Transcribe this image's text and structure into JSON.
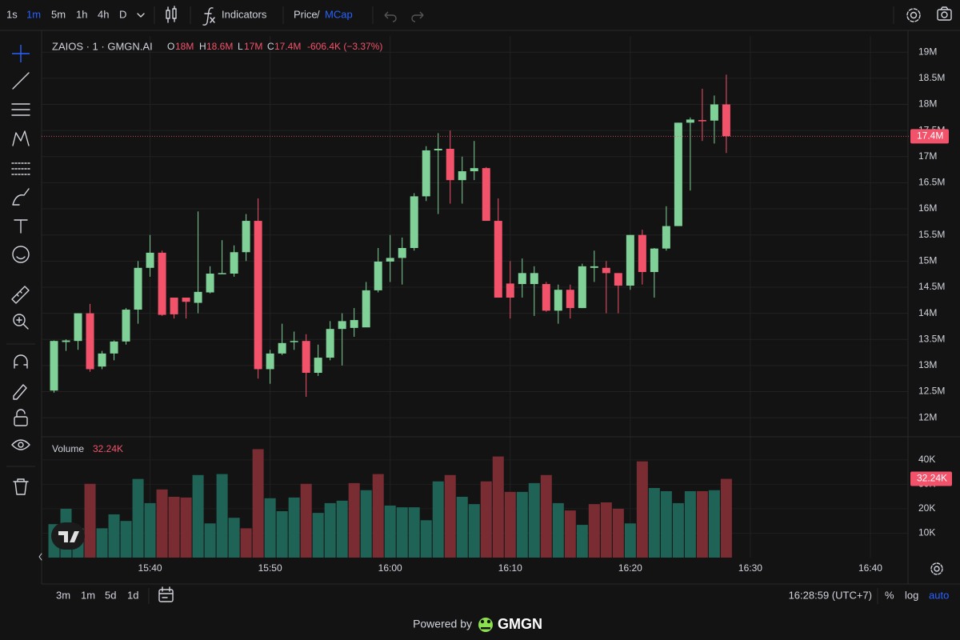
{
  "toolbar": {
    "intervals": [
      "1s",
      "1m",
      "5m",
      "1h",
      "4h",
      "D"
    ],
    "indicators": "Indicators",
    "price": "Price",
    "separator": "/",
    "mcap": "MCap"
  },
  "legend": {
    "symbol": "ZAIOS · 1 · GMGN.AI",
    "o_label": "O",
    "o": "18M",
    "h_label": "H",
    "h": "18.6M",
    "l_label": "L",
    "l": "17M",
    "c_label": "C",
    "c": "17.4M",
    "change": "-606.4K (−3.37%)"
  },
  "chart_data": [
    {
      "type": "candlestick",
      "up_color": "#7fd197",
      "down_color": "#f2536b",
      "x": [
        "15:32",
        "15:33",
        "15:34",
        "15:35",
        "15:36",
        "15:37",
        "15:38",
        "15:39",
        "15:40",
        "15:41",
        "15:42",
        "15:43",
        "15:44",
        "15:45",
        "15:46",
        "15:47",
        "15:48",
        "15:49",
        "15:50",
        "15:51",
        "15:52",
        "15:53",
        "15:54",
        "15:55",
        "15:56",
        "15:57",
        "15:58",
        "15:59",
        "16:00",
        "16:01",
        "16:02",
        "16:03",
        "16:04",
        "16:05",
        "16:06",
        "16:07",
        "16:08",
        "16:09",
        "16:10",
        "16:11",
        "16:12",
        "16:13",
        "16:14",
        "16:15",
        "16:16",
        "16:17",
        "16:18",
        "16:19",
        "16:20",
        "16:21",
        "16:22",
        "16:23",
        "16:24",
        "16:25",
        "16:26",
        "16:27",
        "16:28"
      ],
      "open": [
        12.52,
        13.45,
        13.47,
        14.0,
        12.98,
        13.23,
        13.46,
        14.07,
        14.87,
        15.16,
        14.3,
        14.3,
        14.2,
        14.4,
        14.76,
        14.76,
        15.17,
        15.77,
        12.93,
        13.23,
        13.45,
        13.47,
        12.86,
        13.15,
        13.7,
        13.72,
        13.73,
        14.44,
        14.99,
        15.06,
        15.25,
        16.24,
        17.12,
        17.15,
        16.55,
        16.72,
        16.78,
        15.77,
        14.57,
        14.56,
        14.56,
        14.56,
        14.05,
        14.45,
        14.1,
        14.87,
        14.87,
        14.77,
        14.53,
        15.5,
        14.79,
        15.24,
        15.67,
        17.65,
        17.7,
        17.69,
        18.0
      ],
      "high": [
        13.48,
        13.5,
        14.0,
        14.18,
        13.28,
        13.48,
        14.1,
        15.0,
        15.5,
        15.2,
        14.3,
        14.3,
        15.95,
        14.9,
        15.4,
        15.3,
        15.9,
        16.2,
        13.3,
        13.8,
        13.65,
        13.6,
        13.4,
        13.85,
        14.0,
        14.1,
        14.6,
        15.25,
        15.5,
        15.45,
        16.3,
        17.2,
        17.45,
        17.5,
        17.0,
        17.3,
        16.8,
        16.2,
        15.0,
        15.05,
        14.9,
        14.6,
        14.55,
        14.55,
        14.95,
        15.2,
        15.0,
        14.77,
        15.5,
        15.6,
        15.25,
        16.05,
        17.65,
        17.75,
        18.3,
        18.17,
        18.57
      ],
      "low": [
        12.48,
        13.28,
        13.3,
        12.88,
        12.93,
        13.1,
        13.4,
        13.8,
        14.7,
        13.95,
        13.9,
        13.9,
        14.0,
        14.38,
        14.76,
        14.7,
        15.0,
        12.75,
        12.65,
        13.2,
        13.3,
        12.4,
        12.8,
        13.1,
        13.0,
        13.55,
        13.75,
        14.4,
        14.6,
        14.55,
        15.2,
        16.15,
        15.9,
        16.1,
        16.1,
        16.55,
        15.77,
        14.3,
        13.9,
        14.3,
        13.95,
        14.03,
        13.8,
        13.9,
        14.1,
        14.6,
        14.0,
        14.0,
        14.45,
        14.55,
        14.3,
        15.2,
        15.67,
        16.35,
        17.3,
        17.25,
        17.07
      ],
      "close": [
        13.47,
        13.48,
        14.0,
        12.93,
        13.23,
        13.46,
        14.07,
        14.87,
        15.16,
        13.97,
        13.98,
        14.22,
        14.41,
        14.76,
        14.77,
        15.17,
        15.77,
        12.93,
        13.23,
        13.43,
        13.47,
        12.86,
        13.15,
        13.7,
        13.85,
        13.87,
        14.44,
        14.99,
        15.06,
        15.25,
        16.24,
        17.12,
        17.15,
        16.55,
        16.72,
        16.78,
        15.77,
        14.3,
        14.3,
        14.77,
        14.77,
        14.05,
        14.45,
        14.1,
        14.9,
        14.9,
        14.77,
        14.53,
        15.5,
        14.79,
        15.24,
        15.67,
        17.65,
        17.71,
        17.69,
        18.0,
        17.39
      ],
      "last_label": "17.4M",
      "xlim": [
        "15:31:10",
        "16:42:48"
      ],
      "ylim": [
        11.65,
        19.31
      ],
      "yticks": [
        {
          "value": 12,
          "label": "12M"
        },
        {
          "value": 12.5,
          "label": "12.5M"
        },
        {
          "value": 13,
          "label": "13M"
        },
        {
          "value": 13.5,
          "label": "13.5M"
        },
        {
          "value": 14,
          "label": "14M"
        },
        {
          "value": 14.5,
          "label": "14.5M"
        },
        {
          "value": 15,
          "label": "15M"
        },
        {
          "value": 15.5,
          "label": "15.5M"
        },
        {
          "value": 16,
          "label": "16M"
        },
        {
          "value": 16.5,
          "label": "16.5M"
        },
        {
          "value": 17,
          "label": "17M"
        },
        {
          "value": 17.5,
          "label": "17.5M"
        },
        {
          "value": 18,
          "label": "18M"
        },
        {
          "value": 18.5,
          "label": "18.5M"
        },
        {
          "value": 19,
          "label": "19M"
        }
      ],
      "grid": true
    },
    {
      "type": "bar",
      "title": "Volume",
      "legend_value": "32.24K",
      "x": [
        "15:32",
        "15:33",
        "15:34",
        "15:35",
        "15:36",
        "15:37",
        "15:38",
        "15:39",
        "15:40",
        "15:41",
        "15:42",
        "15:43",
        "15:44",
        "15:45",
        "15:46",
        "15:47",
        "15:48",
        "15:49",
        "15:50",
        "15:51",
        "15:52",
        "15:53",
        "15:54",
        "15:55",
        "15:56",
        "15:57",
        "15:58",
        "15:59",
        "16:00",
        "16:01",
        "16:02",
        "16:03",
        "16:04",
        "16:05",
        "16:06",
        "16:07",
        "16:08",
        "16:09",
        "16:10",
        "16:11",
        "16:12",
        "16:13",
        "16:14",
        "16:15",
        "16:16",
        "16:17",
        "16:18",
        "16:19",
        "16:20",
        "16:21",
        "16:22",
        "16:23",
        "16:24",
        "16:25",
        "16:26",
        "16:27",
        "16:28"
      ],
      "values": [
        13.7,
        20.0,
        12.0,
        30.2,
        12.0,
        17.7,
        15.0,
        32.2,
        22.3,
        27.9,
        24.9,
        24.6,
        33.8,
        14.0,
        34.2,
        16.3,
        12.0,
        44.4,
        24.3,
        19.0,
        24.6,
        30.2,
        18.3,
        22.3,
        23.3,
        30.5,
        27.6,
        34.2,
        21.3,
        20.6,
        20.6,
        15.3,
        31.2,
        33.8,
        24.9,
        21.9,
        31.2,
        41.4,
        26.9,
        26.9,
        30.5,
        33.8,
        22.3,
        19.3,
        13.4,
        21.9,
        22.6,
        20.0,
        14.0,
        39.4,
        28.5,
        27.2,
        22.3,
        27.2,
        27.2,
        27.6,
        32.24
      ],
      "colors": [
        "#1f6356",
        "#1f6356",
        "#1f6356",
        "#7a2c33",
        "#1f6356",
        "#1f6356",
        "#1f6356",
        "#1f6356",
        "#1f6356",
        "#7a2c33",
        "#7a2c33",
        "#7a2c33",
        "#1f6356",
        "#1f6356",
        "#1f6356",
        "#1f6356",
        "#7a2c33",
        "#7a2c33",
        "#1f6356",
        "#1f6356",
        "#1f6356",
        "#7a2c33",
        "#1f6356",
        "#1f6356",
        "#1f6356",
        "#7a2c33",
        "#1f6356",
        "#7a2c33",
        "#1f6356",
        "#1f6356",
        "#1f6356",
        "#1f6356",
        "#1f6356",
        "#7a2c33",
        "#1f6356",
        "#1f6356",
        "#7a2c33",
        "#7a2c33",
        "#7a2c33",
        "#1f6356",
        "#1f6356",
        "#7a2c33",
        "#1f6356",
        "#7a2c33",
        "#1f6356",
        "#7a2c33",
        "#7a2c33",
        "#7a2c33",
        "#1f6356",
        "#7a2c33",
        "#1f6356",
        "#1f6356",
        "#1f6356",
        "#1f6356",
        "#7a2c33",
        "#1f6356",
        "#7a2c33"
      ],
      "xlim": [
        "15:31:10",
        "16:42:48"
      ],
      "xticks": [
        "15:40",
        "15:50",
        "16:00",
        "16:10",
        "16:20",
        "16:30",
        "16:40"
      ],
      "ylim": [
        0,
        48.8
      ],
      "yticks": [
        {
          "value": 10,
          "label": "10K"
        },
        {
          "value": 20,
          "label": "20K"
        },
        {
          "value": 30,
          "label": "30K"
        },
        {
          "value": 40,
          "label": "40K"
        }
      ]
    }
  ],
  "footer": {
    "ranges": [
      "3m",
      "1m",
      "5d",
      "1d"
    ],
    "clock": "16:28:59 (UTC+7)",
    "percent": "%",
    "log": "log",
    "auto": "auto",
    "powered": "Powered by",
    "brand": "GMGN"
  }
}
